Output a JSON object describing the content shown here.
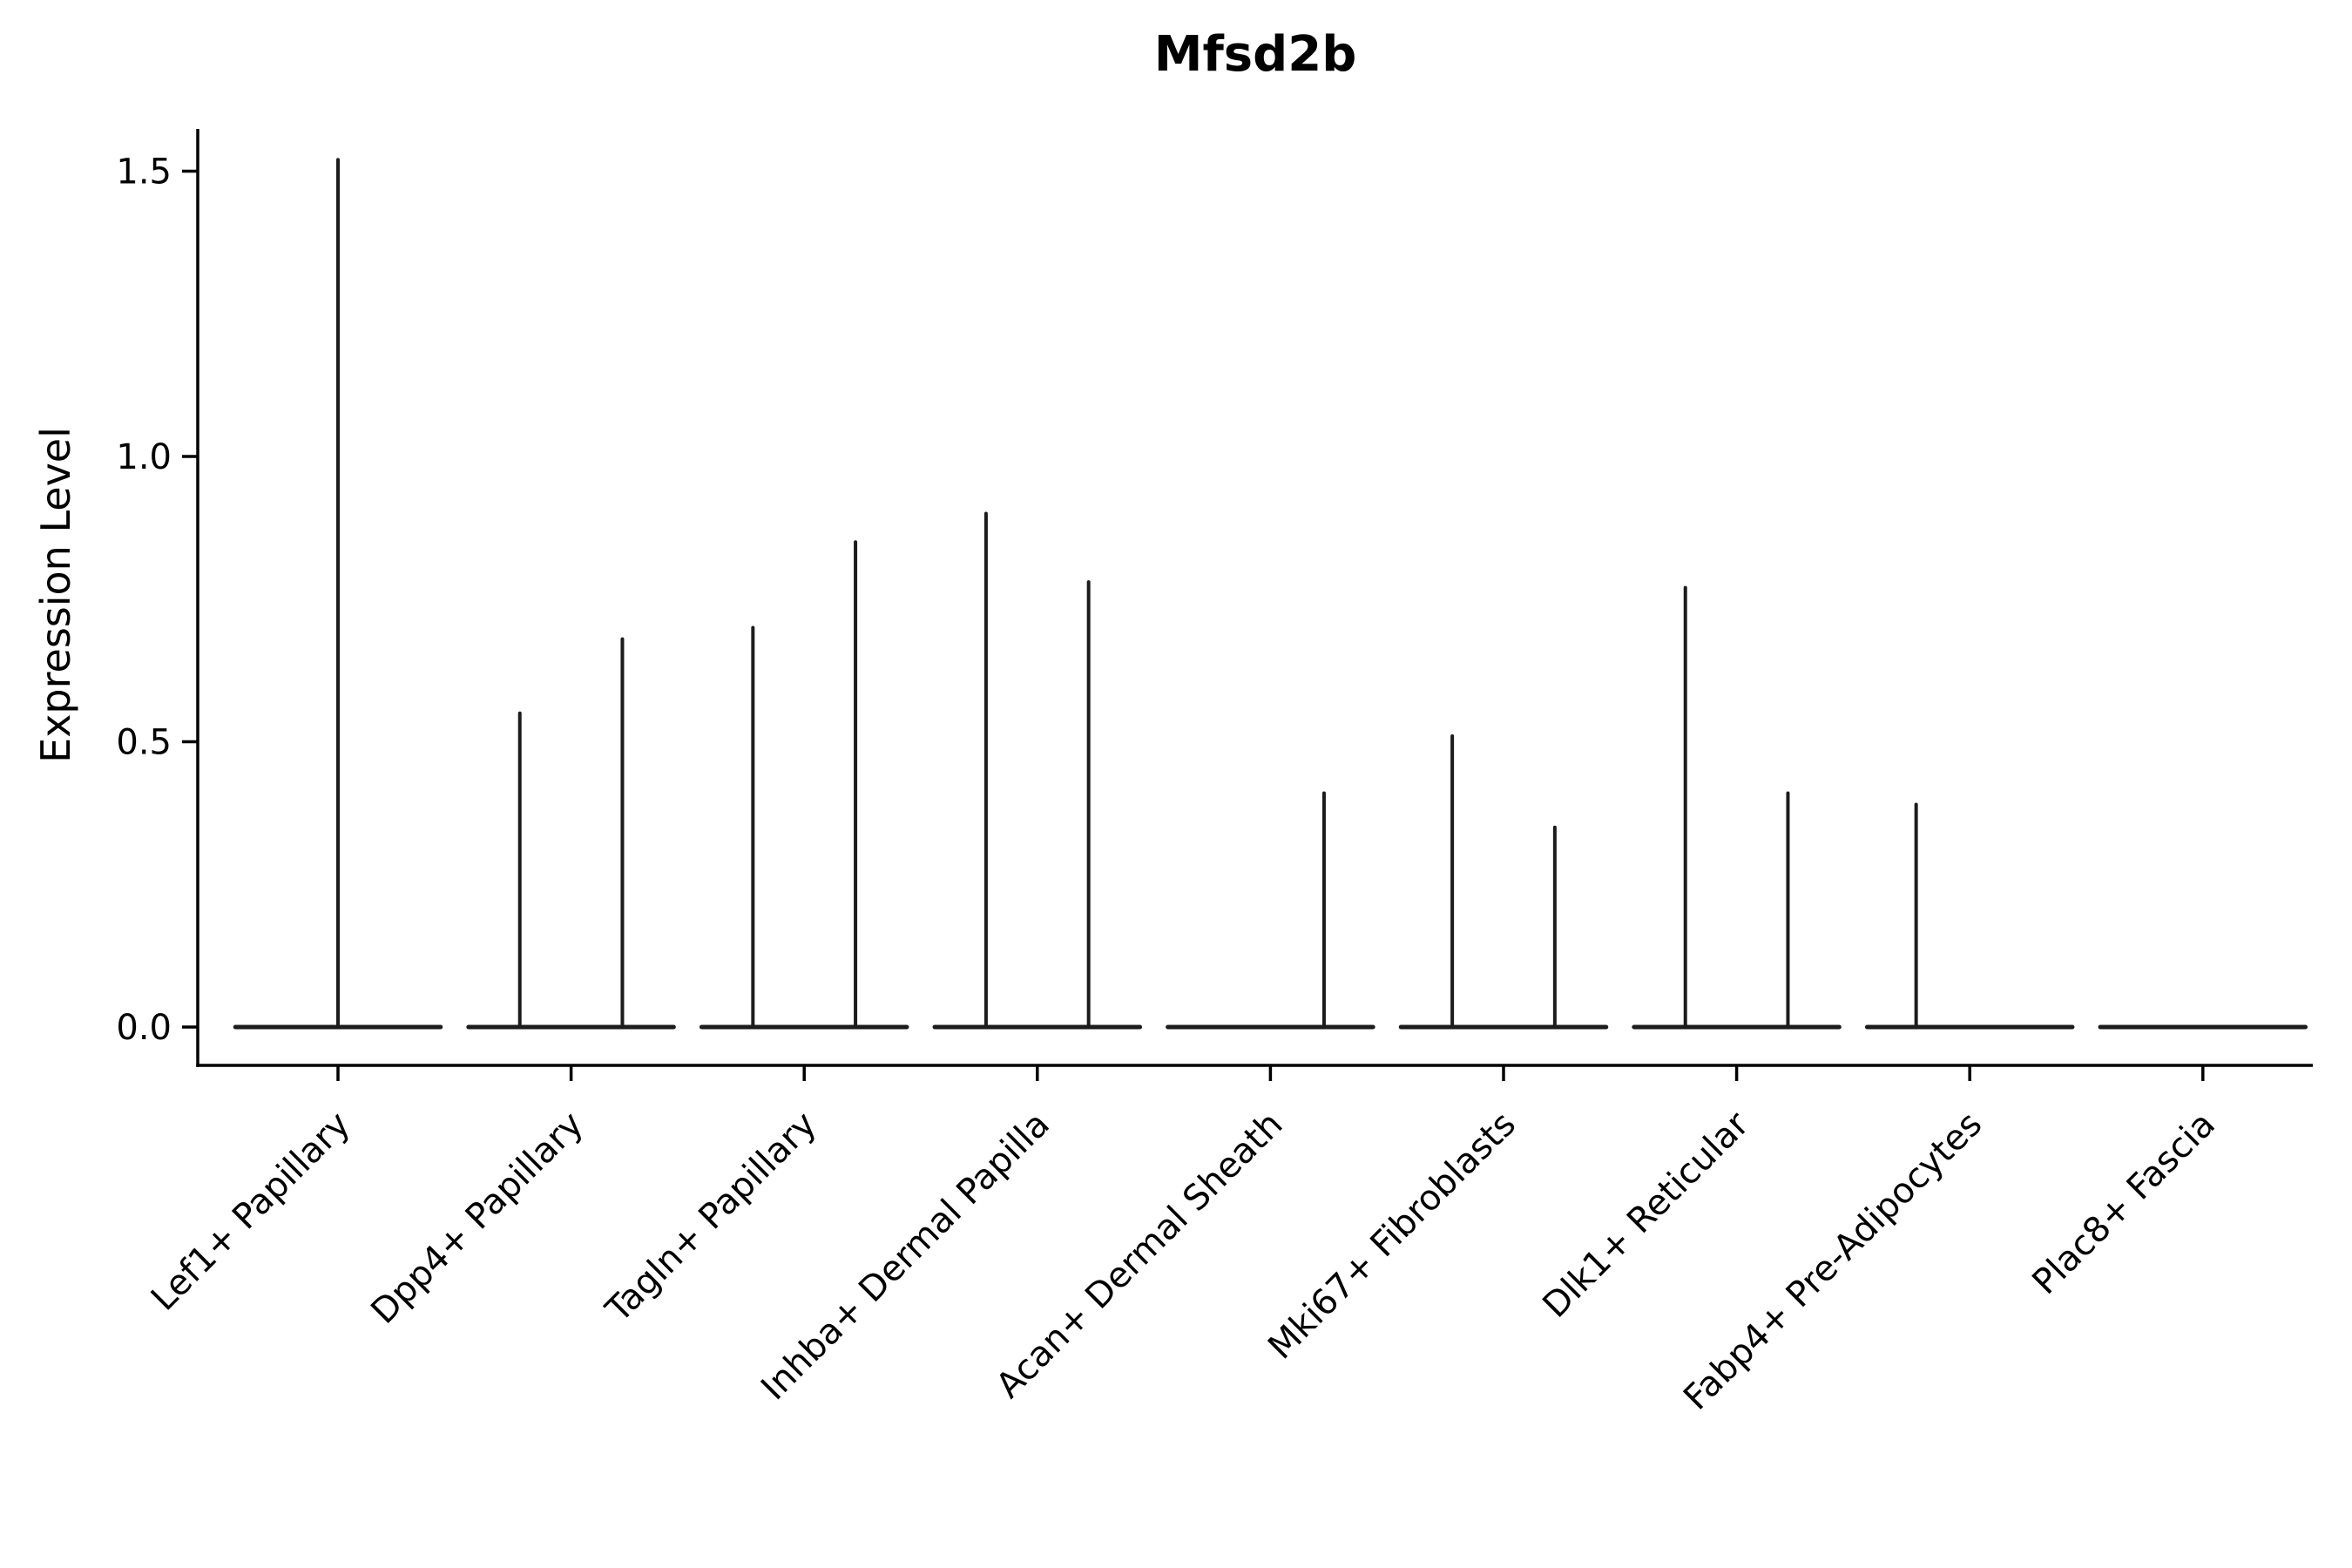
{
  "chart_data": {
    "type": "violin",
    "title": "Mfsd2b",
    "ylabel": "Expression Level",
    "ylim": [
      0,
      1.57
    ],
    "yticks": [
      0.0,
      0.5,
      1.0,
      1.5
    ],
    "ytick_labels": [
      "0.0",
      "0.5",
      "1.0",
      "1.5"
    ],
    "grid": false,
    "legend": "none",
    "base_halfwidth": 0.44,
    "categories": [
      "Lef1+ Papillary",
      "Dpp4+ Papillary",
      "Tagln+ Papillary",
      "Inhba+ Dermal Papilla",
      "Acan+ Dermal Sheath",
      "Mki67+ Fibroblasts",
      "Dlk1+ Reticular",
      "Fabp4+ Pre-Adipocytes",
      "Plac8+ Fascia"
    ],
    "violins": [
      {
        "category": "Lef1+ Papillary",
        "spikes": [
          {
            "x_offset": 0.0,
            "peak": 1.52
          }
        ]
      },
      {
        "category": "Dpp4+ Papillary",
        "spikes": [
          {
            "x_offset": -0.22,
            "peak": 0.55
          },
          {
            "x_offset": 0.22,
            "peak": 0.68
          }
        ]
      },
      {
        "category": "Tagln+ Papillary",
        "spikes": [
          {
            "x_offset": -0.22,
            "peak": 0.7
          },
          {
            "x_offset": 0.22,
            "peak": 0.85
          }
        ]
      },
      {
        "category": "Inhba+ Dermal Papilla",
        "spikes": [
          {
            "x_offset": -0.22,
            "peak": 0.9
          },
          {
            "x_offset": 0.22,
            "peak": 0.78
          }
        ]
      },
      {
        "category": "Acan+ Dermal Sheath",
        "spikes": [
          {
            "x_offset": 0.23,
            "peak": 0.41
          }
        ]
      },
      {
        "category": "Mki67+ Fibroblasts",
        "spikes": [
          {
            "x_offset": -0.22,
            "peak": 0.51
          },
          {
            "x_offset": 0.22,
            "peak": 0.35
          }
        ]
      },
      {
        "category": "Dlk1+ Reticular",
        "spikes": [
          {
            "x_offset": -0.22,
            "peak": 0.77
          },
          {
            "x_offset": 0.22,
            "peak": 0.41
          }
        ]
      },
      {
        "category": "Fabp4+ Pre-Adipocytes",
        "spikes": [
          {
            "x_offset": -0.23,
            "peak": 0.39
          }
        ]
      },
      {
        "category": "Plac8+ Fascia",
        "spikes": []
      }
    ],
    "colors": {
      "axis": "#000000",
      "text": "#000000",
      "violin": "#1c1c1c",
      "background": "#ffffff"
    }
  }
}
